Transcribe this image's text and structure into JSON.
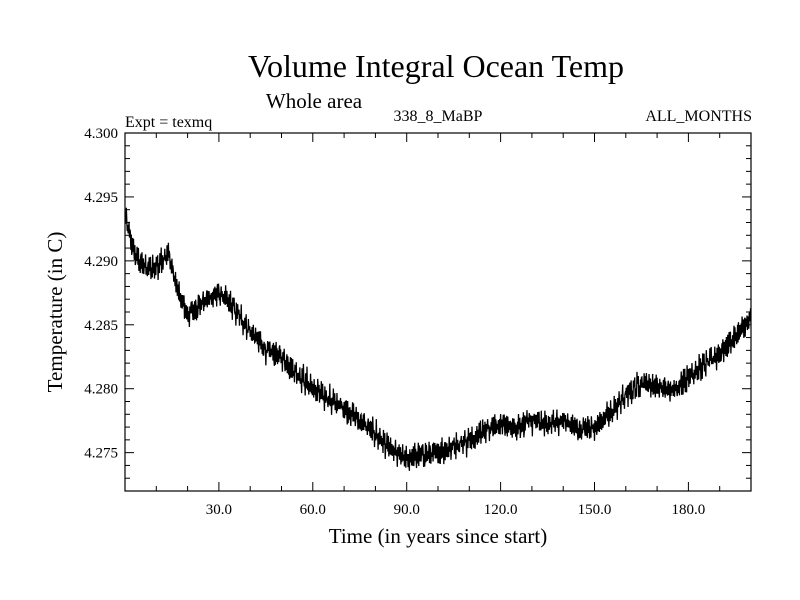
{
  "chart_data": {
    "type": "line",
    "title": "Volume Integral Ocean Temp",
    "subtitle": "Whole area",
    "header_left": "Expt = texmq",
    "header_center": "338_8_MaBP",
    "header_right": "ALL_MONTHS",
    "xlabel": "Time (in years since start)",
    "ylabel": "Temperature (in C)",
    "xlim": [
      0,
      200
    ],
    "ylim": [
      4.272,
      4.3
    ],
    "xticks": [
      30,
      60,
      90,
      120,
      150,
      180
    ],
    "xtick_labels": [
      "30.0",
      "60.0",
      "90.0",
      "120.0",
      "150.0",
      "180.0"
    ],
    "yticks": [
      4.275,
      4.28,
      4.285,
      4.29,
      4.295,
      4.3
    ],
    "ytick_labels": [
      "4.275",
      "4.280",
      "4.285",
      "4.290",
      "4.295",
      "4.300"
    ],
    "series": [
      {
        "name": "Volume integral ocean temperature",
        "color": "#000000",
        "x": [
          0,
          3,
          6,
          10,
          14,
          17,
          20,
          25,
          30,
          35,
          40,
          45,
          50,
          55,
          60,
          65,
          70,
          75,
          80,
          85,
          90,
          95,
          100,
          105,
          110,
          115,
          120,
          125,
          130,
          135,
          140,
          145,
          150,
          155,
          160,
          165,
          170,
          175,
          180,
          185,
          190,
          195,
          200
        ],
        "values": [
          4.2935,
          4.2905,
          4.2895,
          4.2895,
          4.2905,
          4.2875,
          4.2858,
          4.2868,
          4.2875,
          4.2862,
          4.2845,
          4.283,
          4.2825,
          4.2812,
          4.28,
          4.2792,
          4.2785,
          4.2775,
          4.2765,
          4.2752,
          4.2745,
          4.2748,
          4.275,
          4.2755,
          4.276,
          4.2768,
          4.2772,
          4.277,
          4.2775,
          4.2772,
          4.2775,
          4.2768,
          4.277,
          4.278,
          4.2795,
          4.2805,
          4.2802,
          4.2798,
          4.281,
          4.2818,
          4.2828,
          4.284,
          4.2855
        ],
        "noise_amplitude": 0.0022
      }
    ]
  }
}
